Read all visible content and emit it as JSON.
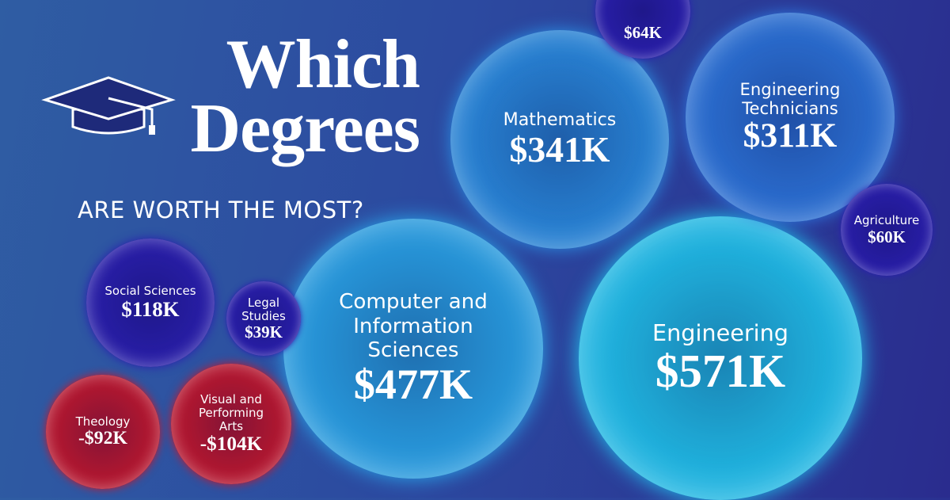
{
  "chart_data": {
    "type": "bubble",
    "title": "Which Degrees",
    "subtitle": "ARE WORTH THE MOST?",
    "categories": [
      "Engineering",
      "Computer and Information Sciences",
      "Mathematics",
      "Engineering Technicians",
      "Social Sciences",
      null,
      "Agriculture",
      "Legal Studies",
      "Theology",
      "Visual and Performing Arts"
    ],
    "values": [
      571,
      477,
      341,
      311,
      118,
      64,
      60,
      39,
      -92,
      -104
    ],
    "value_labels": [
      "$571K",
      "$477K",
      "$341K",
      "$311K",
      "$118K",
      "$64K",
      "$60K",
      "$39K",
      "-$92K",
      "-$104K"
    ],
    "colors": [
      "#22c6f0",
      "#2aa6ea",
      "#2a8ce0",
      "#2d76dc",
      "#2a1faf",
      "#2a1faf",
      "#2a1faf",
      "#2a1faf",
      "#c4182d",
      "#c4182d"
    ]
  }
}
